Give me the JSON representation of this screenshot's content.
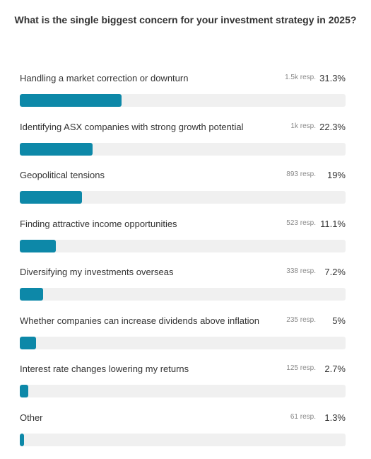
{
  "poll": {
    "title": "What is the single biggest concern for your investment strategy in 2025?",
    "bar_color": "#0d88a8",
    "track_color": "#f0f0f0",
    "options": [
      {
        "label": "Handling a market correction or downturn",
        "responses": "1.5k resp.",
        "percent_label": "31.3%",
        "percent": 31.3
      },
      {
        "label": "Identifying ASX companies with strong growth potential",
        "responses": "1k resp.",
        "percent_label": "22.3%",
        "percent": 22.3
      },
      {
        "label": "Geopolitical tensions",
        "responses": "893 resp.",
        "percent_label": "19%",
        "percent": 19
      },
      {
        "label": "Finding attractive income opportunities",
        "responses": "523 resp.",
        "percent_label": "11.1%",
        "percent": 11.1
      },
      {
        "label": "Diversifying my investments overseas",
        "responses": "338 resp.",
        "percent_label": "7.2%",
        "percent": 7.2
      },
      {
        "label": "Whether companies can increase dividends above inflation",
        "responses": "235 resp.",
        "percent_label": "5%",
        "percent": 5
      },
      {
        "label": "Interest rate changes lowering my returns",
        "responses": "125 resp.",
        "percent_label": "2.7%",
        "percent": 2.7
      },
      {
        "label": "Other",
        "responses": "61 resp.",
        "percent_label": "1.3%",
        "percent": 1.3
      }
    ]
  }
}
